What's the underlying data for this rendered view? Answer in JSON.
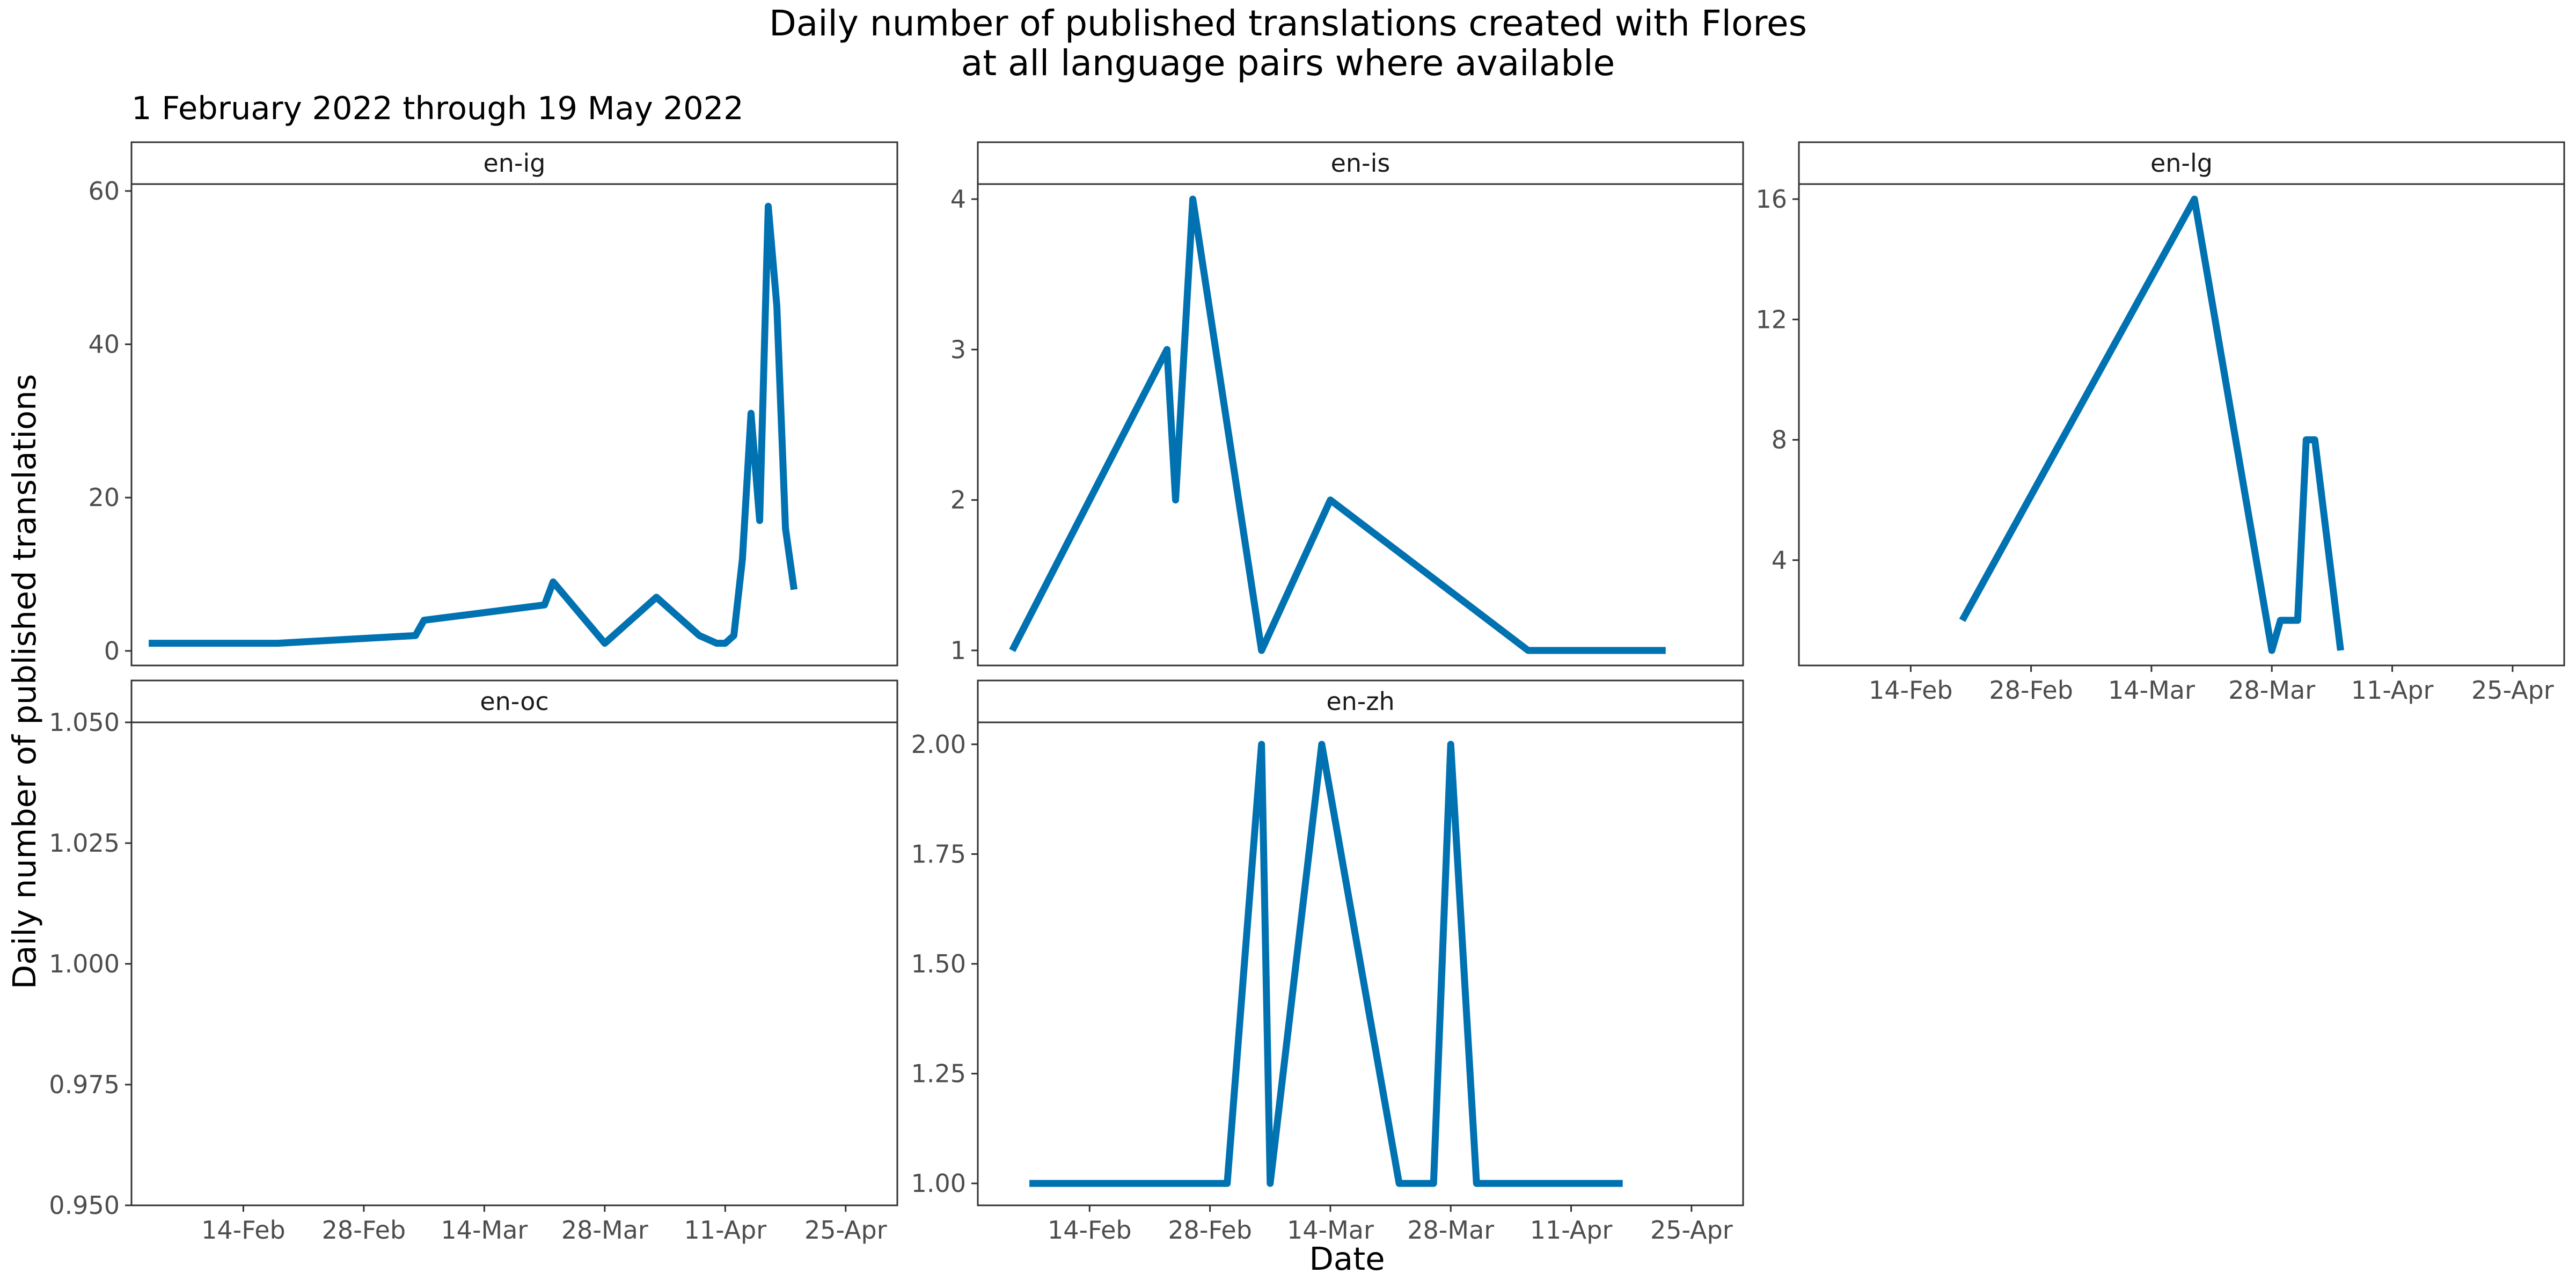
{
  "chart_data": {
    "type": "line",
    "title": "Daily number of published translations created with Flores",
    "title_line2": "at all language pairs where available",
    "subtitle": "1 February 2022 through 19 May 2022",
    "xlabel": "Date",
    "ylabel": "Daily number of published translations",
    "line_color": "#0072B2",
    "grid": false,
    "x_axis_shown_on": [
      "en-lg",
      "en-oc",
      "en-zh"
    ],
    "panels": [
      {
        "name": "en-ig",
        "xlim": [
          "2022-02-01",
          "2022-05-01"
        ],
        "ylim": [
          -1.9,
          60.9
        ],
        "yticks": [
          0,
          20,
          40,
          60
        ],
        "ytick_labels": [
          "0",
          "20",
          "40",
          "60"
        ],
        "xticks": [
          "2022-02-14",
          "2022-02-28",
          "2022-03-14",
          "2022-03-28",
          "2022-04-11",
          "2022-04-25"
        ],
        "xtick_labels": [
          "14-Feb",
          "28-Feb",
          "14-Mar",
          "28-Mar",
          "11-Apr",
          "25-Apr"
        ],
        "points": [
          {
            "x": "2022-02-03",
            "y": 1
          },
          {
            "x": "2022-02-18",
            "y": 1
          },
          {
            "x": "2022-03-06",
            "y": 2
          },
          {
            "x": "2022-03-07",
            "y": 4
          },
          {
            "x": "2022-03-21",
            "y": 6
          },
          {
            "x": "2022-03-22",
            "y": 9
          },
          {
            "x": "2022-03-28",
            "y": 1
          },
          {
            "x": "2022-04-03",
            "y": 7
          },
          {
            "x": "2022-04-08",
            "y": 2
          },
          {
            "x": "2022-04-10",
            "y": 1
          },
          {
            "x": "2022-04-11",
            "y": 1
          },
          {
            "x": "2022-04-12",
            "y": 2
          },
          {
            "x": "2022-04-13",
            "y": 12
          },
          {
            "x": "2022-04-14",
            "y": 31
          },
          {
            "x": "2022-04-15",
            "y": 17
          },
          {
            "x": "2022-04-16",
            "y": 58
          },
          {
            "x": "2022-04-17",
            "y": 45
          },
          {
            "x": "2022-04-18",
            "y": 16
          },
          {
            "x": "2022-04-19",
            "y": 8
          }
        ]
      },
      {
        "name": "en-is",
        "xlim": [
          "2022-02-01",
          "2022-05-01"
        ],
        "ylim": [
          0.9,
          4.1
        ],
        "yticks": [
          1,
          2,
          3,
          4
        ],
        "ytick_labels": [
          "1",
          "2",
          "3",
          "4"
        ],
        "xticks": [
          "2022-02-14",
          "2022-02-28",
          "2022-03-14",
          "2022-03-28",
          "2022-04-11",
          "2022-04-25"
        ],
        "xtick_labels": [
          "14-Feb",
          "28-Feb",
          "14-Mar",
          "28-Mar",
          "11-Apr",
          "25-Apr"
        ],
        "points": [
          {
            "x": "2022-02-05",
            "y": 1
          },
          {
            "x": "2022-02-23",
            "y": 3
          },
          {
            "x": "2022-02-24",
            "y": 2
          },
          {
            "x": "2022-02-26",
            "y": 4
          },
          {
            "x": "2022-03-06",
            "y": 1
          },
          {
            "x": "2022-03-14",
            "y": 2
          },
          {
            "x": "2022-04-06",
            "y": 1
          },
          {
            "x": "2022-04-22",
            "y": 1
          }
        ]
      },
      {
        "name": "en-lg",
        "xlim": [
          "2022-02-01",
          "2022-05-01"
        ],
        "ylim": [
          0.5,
          16.5
        ],
        "yticks": [
          4,
          8,
          12,
          16
        ],
        "ytick_labels": [
          "4",
          "8",
          "12",
          "16"
        ],
        "xticks": [
          "2022-02-14",
          "2022-02-28",
          "2022-03-14",
          "2022-03-28",
          "2022-04-11",
          "2022-04-25"
        ],
        "xtick_labels": [
          "14-Feb",
          "28-Feb",
          "14-Mar",
          "28-Mar",
          "11-Apr",
          "25-Apr"
        ],
        "points": [
          {
            "x": "2022-02-20",
            "y": 2
          },
          {
            "x": "2022-03-19",
            "y": 16
          },
          {
            "x": "2022-03-28",
            "y": 1
          },
          {
            "x": "2022-03-29",
            "y": 2
          },
          {
            "x": "2022-03-31",
            "y": 2
          },
          {
            "x": "2022-04-01",
            "y": 8
          },
          {
            "x": "2022-04-02",
            "y": 8
          },
          {
            "x": "2022-04-05",
            "y": 1
          }
        ]
      },
      {
        "name": "en-oc",
        "xlim": [
          "2022-02-01",
          "2022-05-01"
        ],
        "ylim": [
          0.95,
          1.05
        ],
        "yticks": [
          0.95,
          0.975,
          1.0,
          1.025,
          1.05
        ],
        "ytick_labels": [
          "0.950",
          "0.975",
          "1.000",
          "1.025",
          "1.050"
        ],
        "xticks": [
          "2022-02-14",
          "2022-02-28",
          "2022-03-14",
          "2022-03-28",
          "2022-04-11",
          "2022-04-25"
        ],
        "xtick_labels": [
          "14-Feb",
          "28-Feb",
          "14-Mar",
          "28-Mar",
          "11-Apr",
          "25-Apr"
        ],
        "points": []
      },
      {
        "name": "en-zh",
        "xlim": [
          "2022-02-01",
          "2022-05-01"
        ],
        "ylim": [
          0.95,
          2.05
        ],
        "yticks": [
          1.0,
          1.25,
          1.5,
          1.75,
          2.0
        ],
        "ytick_labels": [
          "1.00",
          "1.25",
          "1.50",
          "1.75",
          "2.00"
        ],
        "xticks": [
          "2022-02-14",
          "2022-02-28",
          "2022-03-14",
          "2022-03-28",
          "2022-04-11",
          "2022-04-25"
        ],
        "xtick_labels": [
          "14-Feb",
          "28-Feb",
          "14-Mar",
          "28-Mar",
          "11-Apr",
          "25-Apr"
        ],
        "points": [
          {
            "x": "2022-02-07",
            "y": 1
          },
          {
            "x": "2022-03-02",
            "y": 1
          },
          {
            "x": "2022-03-06",
            "y": 2
          },
          {
            "x": "2022-03-07",
            "y": 1
          },
          {
            "x": "2022-03-13",
            "y": 2
          },
          {
            "x": "2022-03-22",
            "y": 1
          },
          {
            "x": "2022-03-26",
            "y": 1
          },
          {
            "x": "2022-03-28",
            "y": 2
          },
          {
            "x": "2022-03-31",
            "y": 1
          },
          {
            "x": "2022-04-17",
            "y": 1
          }
        ]
      }
    ]
  }
}
